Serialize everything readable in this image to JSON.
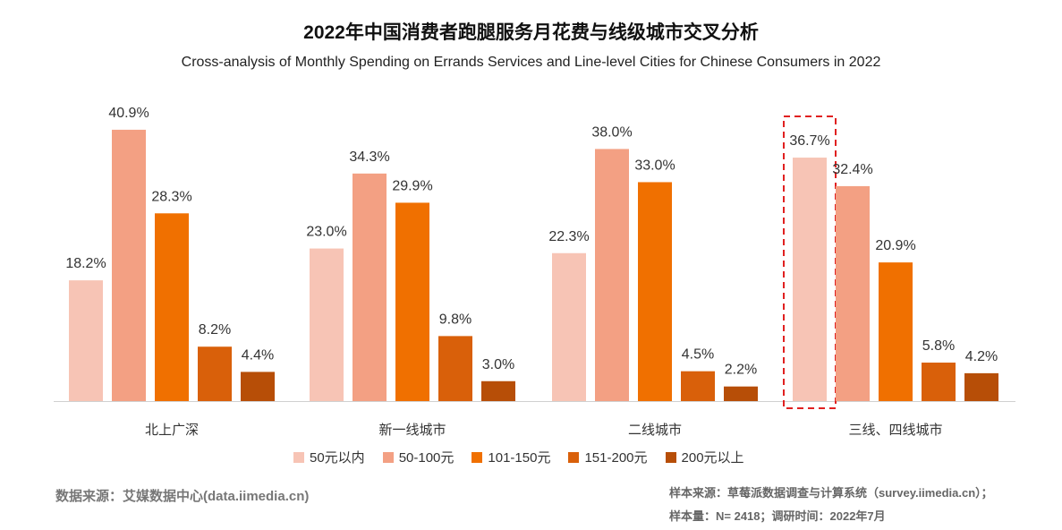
{
  "title": "2022年中国消费者跑腿服务月花费与线级城市交叉分析",
  "subtitle": "Cross-analysis of Monthly Spending on Errands Services and Line-level Cities for Chinese Consumers in 2022",
  "source": "数据来源：艾媒数据中心(data.iimedia.cn)",
  "notes": [
    "样本来源：草莓派数据调查与计算系统（survey.iimedia.cn）；",
    "样本量：N= 2418；调研时间：2022年7月"
  ],
  "chart_data": {
    "type": "bar",
    "categories": [
      "北上广深",
      "新一线城市",
      "二线城市",
      "三线、四线城市"
    ],
    "series": [
      {
        "name": "50元以内",
        "color": "#F7C4B5",
        "values": [
          18.2,
          23.0,
          22.3,
          36.7
        ]
      },
      {
        "name": "50-100元",
        "color": "#F3A083",
        "values": [
          40.9,
          34.3,
          38.0,
          32.4
        ]
      },
      {
        "name": "101-150元",
        "color": "#F07000",
        "values": [
          28.3,
          29.9,
          33.0,
          20.9
        ]
      },
      {
        "name": "151-200元",
        "color": "#D9600A",
        "values": [
          8.2,
          9.8,
          4.5,
          5.8
        ]
      },
      {
        "name": "200元以上",
        "color": "#B74E07",
        "values": [
          4.4,
          3.0,
          2.2,
          4.2
        ]
      }
    ],
    "unit": "%",
    "highlight": {
      "category": "三线、四线城市",
      "series": "50元以内",
      "style": "red dashed box"
    },
    "legend": "bottom"
  }
}
